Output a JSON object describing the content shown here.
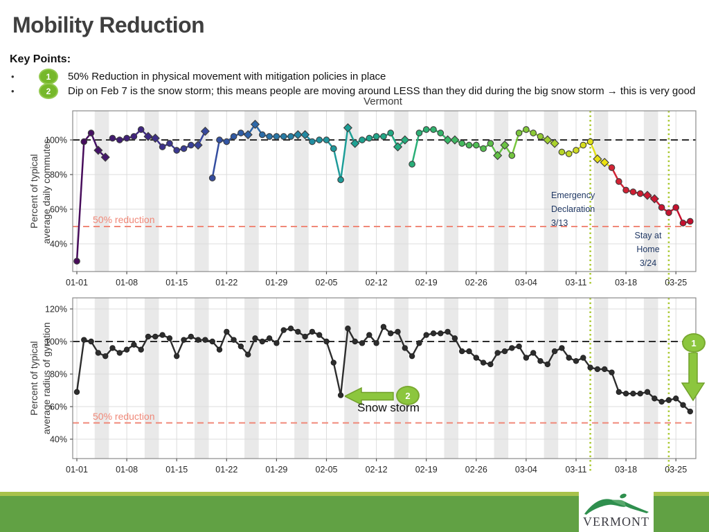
{
  "slide": {
    "title": "Mobility Reduction",
    "key_points_heading": "Key Points:",
    "bullets": [
      {
        "marker": "•",
        "badge": "1",
        "text": "50% Reduction in physical movement with mitigation policies in place"
      },
      {
        "marker": "•",
        "badge": "2",
        "text": "Dip on Feb 7 is the snow storm; this means people are moving around LESS than they did during the big snow storm → this is very good"
      }
    ]
  },
  "figure": {
    "title": "Vermont"
  },
  "annotations": {
    "emergency_declaration": "Emergency\nDeclaration\n3/13",
    "stay_at_home": "Stay at\nHome\n3/24",
    "reduction_label": "50% reduction",
    "snow_storm": "Snow storm",
    "badge1": "1",
    "badge2": "2"
  },
  "footer": {
    "logo_text": "VERMONT"
  },
  "colors": {
    "accent_green": "#8cc63e",
    "badge_green": "#76b82a",
    "footer_green": "#61a144",
    "footer_strip_green": "#a8c24b",
    "annotation_navy": "#203864",
    "red_reference": "#f08878",
    "black_reference": "#2b2b2b",
    "event_line_green": "#aecb3a",
    "gyration_line": "#2d2d2d"
  },
  "chart_data": [
    {
      "type": "line",
      "title": "Vermont",
      "ylabel": "Percent of typical\naverage daily commutes",
      "x_tick_labels": [
        "01-01",
        "01-08",
        "01-15",
        "01-22",
        "01-29",
        "02-05",
        "02-12",
        "02-19",
        "02-26",
        "03-04",
        "03-11",
        "03-18",
        "03-25"
      ],
      "y_tick_values": [
        40,
        60,
        80,
        100
      ],
      "ylim": [
        24,
        117
      ],
      "start_date": "01-01",
      "color_mode": "rainbow-by-date",
      "weekend_marker": "diamond",
      "values": [
        30,
        99,
        104,
        94,
        90,
        101,
        100,
        101,
        102,
        106,
        102,
        101,
        96,
        98,
        94,
        95,
        97,
        97,
        105,
        78,
        100,
        99,
        102,
        104,
        103,
        109,
        103,
        102,
        102,
        102,
        102,
        103,
        103,
        99,
        100,
        100,
        95,
        77,
        107,
        98,
        100,
        101,
        102,
        102,
        104,
        96,
        100,
        86,
        104,
        106,
        106,
        104,
        100,
        100,
        98,
        97,
        97,
        95,
        98,
        91,
        97,
        91,
        104,
        106,
        104,
        102,
        100,
        98,
        93,
        92,
        94,
        97,
        99,
        89,
        87,
        84,
        76,
        71,
        70,
        69,
        68,
        66,
        61,
        58,
        61,
        52,
        53
      ],
      "gaps_after_index": [
        4,
        18,
        46,
        67
      ],
      "reference_lines": {
        "dashed_black": 100,
        "dashed_red": 50,
        "red_label": "50% reduction"
      },
      "event_lines": [
        {
          "day_index": 72,
          "date": "3/13",
          "label": "Emergency Declaration 3/13"
        },
        {
          "day_index": 83,
          "date": "3/24",
          "label": "Stay at Home 3/24"
        }
      ],
      "weekend_shading": true
    },
    {
      "type": "line",
      "ylabel": "Percent of typical\naverage radius of gyration",
      "x_tick_labels": [
        "01-01",
        "01-08",
        "01-15",
        "01-22",
        "01-29",
        "02-05",
        "02-12",
        "02-19",
        "02-26",
        "03-04",
        "03-11",
        "03-18",
        "03-25"
      ],
      "y_tick_values": [
        40,
        60,
        80,
        100,
        120
      ],
      "ylim": [
        28,
        127
      ],
      "start_date": "01-01",
      "color_mode": "black",
      "weekend_marker": "circle",
      "values": [
        69,
        101,
        100,
        93,
        91,
        96,
        93,
        95,
        98,
        95,
        103,
        103,
        104,
        102,
        91,
        101,
        103,
        101,
        101,
        100,
        95,
        106,
        101,
        97,
        92,
        102,
        100,
        102,
        99,
        107,
        108,
        106,
        103,
        106,
        104,
        100,
        87,
        67,
        108,
        100,
        99,
        104,
        99,
        109,
        105,
        106,
        96,
        91,
        99,
        104,
        105,
        105,
        106,
        102,
        94,
        94,
        90,
        87,
        86,
        93,
        94,
        96,
        97,
        90,
        93,
        88,
        86,
        94,
        96,
        90,
        88,
        90,
        84,
        83,
        83,
        81,
        69,
        68,
        68,
        68,
        69,
        65,
        63,
        64,
        65,
        61,
        57
      ],
      "gaps_after_index": [],
      "reference_lines": {
        "dashed_black": 100,
        "dashed_red": 50,
        "red_label": "50% reduction"
      },
      "event_lines": [
        {
          "day_index": 72,
          "date": "3/13"
        },
        {
          "day_index": 83,
          "date": "3/24"
        }
      ],
      "weekend_shading": true,
      "callouts": [
        {
          "badge": "2",
          "text": "Snow storm",
          "points_to_day_index": 37
        },
        {
          "badge": "1",
          "direction": "down"
        }
      ]
    }
  ]
}
